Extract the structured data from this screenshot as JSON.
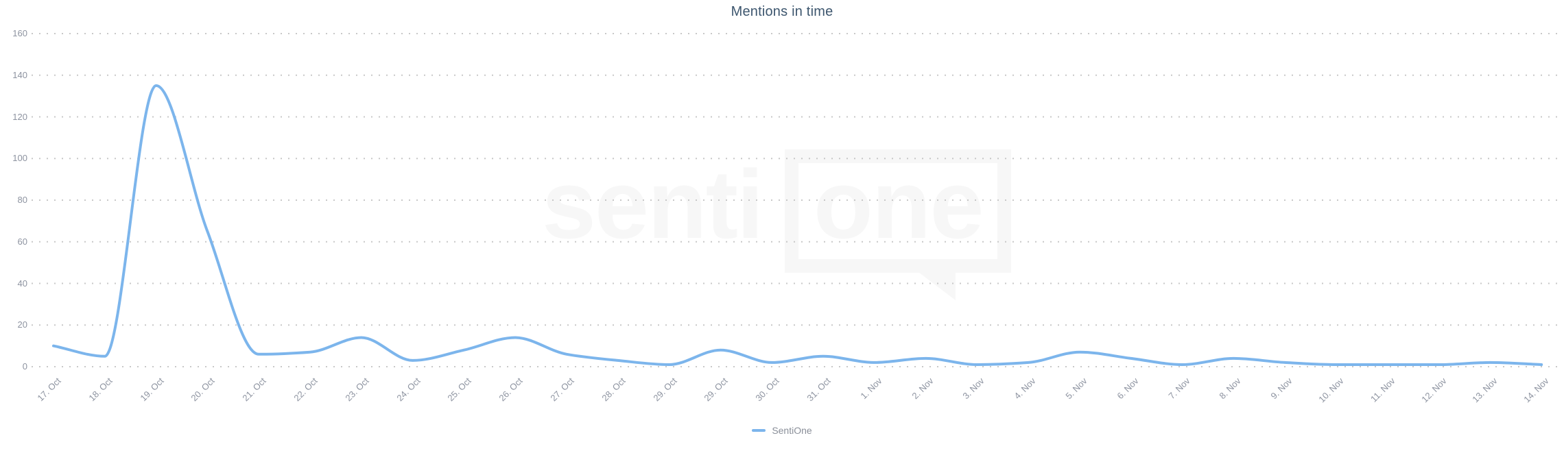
{
  "chart": {
    "title": "Mentions in time",
    "legend": {
      "items": [
        {
          "label": "SentiOne",
          "color": "#7cb5ec"
        }
      ]
    },
    "watermark": {
      "text_plain": "senti",
      "text_boxed": "one"
    },
    "y_axis": {
      "min": 0,
      "max": 160,
      "tick_interval": 20,
      "tick_labels": [
        "0",
        "20",
        "40",
        "60",
        "80",
        "100",
        "120",
        "140",
        "160"
      ]
    },
    "x_axis": {
      "labels": [
        "17. Oct",
        "18. Oct",
        "19. Oct",
        "20. Oct",
        "21. Oct",
        "22. Oct",
        "23. Oct",
        "24. Oct",
        "25. Oct",
        "26. Oct",
        "27. Oct",
        "28. Oct",
        "29. Oct",
        "29. Oct",
        "30. Oct",
        "31. Oct",
        "1. Nov",
        "2. Nov",
        "3. Nov",
        "4. Nov",
        "5. Nov",
        "6. Nov",
        "7. Nov",
        "8. Nov",
        "9. Nov",
        "10. Nov",
        "11. Nov",
        "12. Nov",
        "13. Nov",
        "14. Nov"
      ]
    },
    "colors": {
      "line": "#7cb5ec",
      "grid": "#c8c8c8",
      "title_text": "#3d566e",
      "axis_text": "#8d93a0",
      "legend_text": "#8a8f99",
      "watermark": "#f7f7f7"
    }
  },
  "chart_data": {
    "type": "line",
    "title": "Mentions in time",
    "categories": [
      "17. Oct",
      "18. Oct",
      "19. Oct",
      "20. Oct",
      "21. Oct",
      "22. Oct",
      "23. Oct",
      "24. Oct",
      "25. Oct",
      "26. Oct",
      "27. Oct",
      "28. Oct",
      "29. Oct",
      "29. Oct",
      "30. Oct",
      "31. Oct",
      "1. Nov",
      "2. Nov",
      "3. Nov",
      "4. Nov",
      "5. Nov",
      "6. Nov",
      "7. Nov",
      "8. Nov",
      "9. Nov",
      "10. Nov",
      "11. Nov",
      "12. Nov",
      "13. Nov",
      "14. Nov"
    ],
    "series": [
      {
        "name": "SentiOne",
        "color": "#7cb5ec",
        "values": [
          10,
          5,
          135,
          65,
          6,
          7,
          14,
          3,
          8,
          14,
          6,
          3,
          1,
          8,
          2,
          5,
          2,
          4,
          1,
          2,
          7,
          4,
          1,
          4,
          2,
          1,
          1,
          1,
          2,
          1
        ]
      }
    ],
    "xlabel": "",
    "ylabel": "",
    "ylim": [
      0,
      160
    ],
    "y_tick_interval": 20,
    "grid": "horizontal-dotted",
    "legend_position": "bottom-center",
    "line_style": "smooth-spline"
  }
}
